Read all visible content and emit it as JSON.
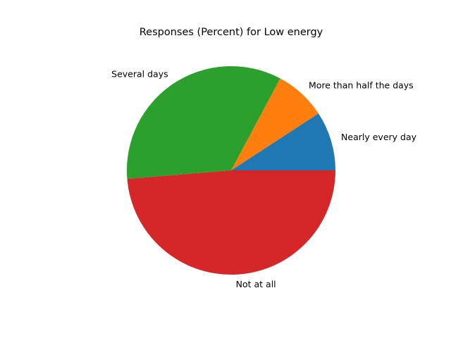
{
  "chart_data": {
    "type": "pie",
    "title": "Responses (Percent) for Low energy",
    "categories": [
      "Nearly every day",
      "More than half the days",
      "Several days",
      "Not at all"
    ],
    "values": [
      9.2,
      8.0,
      34.1,
      48.7
    ],
    "colors": [
      "#1f77b4",
      "#ff7f0e",
      "#2ca02c",
      "#d62728"
    ],
    "start_angle_deg": 0,
    "direction": "counterclockwise",
    "legend": "none"
  }
}
